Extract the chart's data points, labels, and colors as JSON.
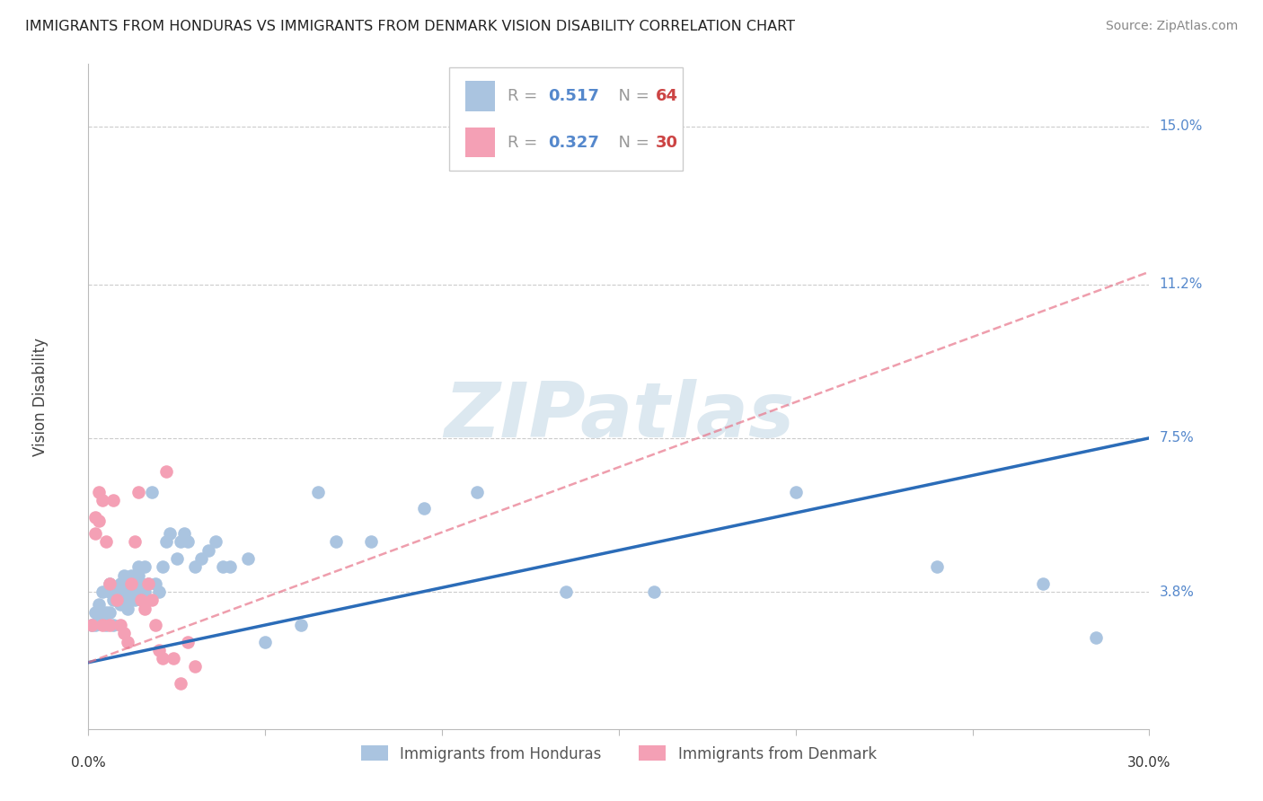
{
  "title": "IMMIGRANTS FROM HONDURAS VS IMMIGRANTS FROM DENMARK VISION DISABILITY CORRELATION CHART",
  "source": "Source: ZipAtlas.com",
  "ylabel": "Vision Disability",
  "xlim": [
    0.0,
    0.3
  ],
  "ylim": [
    0.005,
    0.165
  ],
  "ytick_labels": [
    "3.8%",
    "7.5%",
    "11.2%",
    "15.0%"
  ],
  "ytick_values": [
    0.038,
    0.075,
    0.112,
    0.15
  ],
  "background_color": "#ffffff",
  "grid_color": "#cccccc",
  "honduras_color": "#aac4e0",
  "honduras_line_color": "#2b6cb8",
  "denmark_color": "#f4a0b5",
  "denmark_line_color": "#e8758a",
  "watermark": "ZIPatlas",
  "watermark_color": "#dce8f0",
  "legend_box_color": "#cccccc",
  "R_honduras_val": "0.517",
  "N_honduras_val": "64",
  "R_denmark_val": "0.327",
  "N_denmark_val": "30",
  "R_color": "#5588cc",
  "N_color": "#cc4444",
  "honduras_x": [
    0.001,
    0.002,
    0.002,
    0.003,
    0.003,
    0.004,
    0.004,
    0.005,
    0.005,
    0.006,
    0.006,
    0.006,
    0.007,
    0.007,
    0.008,
    0.008,
    0.009,
    0.009,
    0.01,
    0.01,
    0.01,
    0.011,
    0.011,
    0.012,
    0.012,
    0.013,
    0.013,
    0.014,
    0.014,
    0.015,
    0.015,
    0.016,
    0.016,
    0.017,
    0.018,
    0.019,
    0.02,
    0.021,
    0.022,
    0.023,
    0.025,
    0.026,
    0.027,
    0.028,
    0.03,
    0.032,
    0.034,
    0.036,
    0.038,
    0.04,
    0.045,
    0.05,
    0.06,
    0.065,
    0.07,
    0.08,
    0.095,
    0.11,
    0.135,
    0.16,
    0.2,
    0.24,
    0.27,
    0.285
  ],
  "honduras_y": [
    0.03,
    0.033,
    0.03,
    0.032,
    0.035,
    0.031,
    0.038,
    0.033,
    0.03,
    0.033,
    0.038,
    0.04,
    0.03,
    0.036,
    0.038,
    0.036,
    0.04,
    0.035,
    0.042,
    0.038,
    0.036,
    0.034,
    0.04,
    0.038,
    0.042,
    0.04,
    0.036,
    0.044,
    0.042,
    0.038,
    0.04,
    0.044,
    0.038,
    0.04,
    0.062,
    0.04,
    0.038,
    0.044,
    0.05,
    0.052,
    0.046,
    0.05,
    0.052,
    0.05,
    0.044,
    0.046,
    0.048,
    0.05,
    0.044,
    0.044,
    0.046,
    0.026,
    0.03,
    0.062,
    0.05,
    0.05,
    0.058,
    0.062,
    0.038,
    0.038,
    0.062,
    0.044,
    0.04,
    0.027
  ],
  "denmark_x": [
    0.001,
    0.002,
    0.002,
    0.003,
    0.003,
    0.004,
    0.004,
    0.005,
    0.006,
    0.006,
    0.007,
    0.008,
    0.009,
    0.01,
    0.011,
    0.012,
    0.013,
    0.014,
    0.015,
    0.016,
    0.017,
    0.018,
    0.019,
    0.02,
    0.021,
    0.022,
    0.024,
    0.026,
    0.028,
    0.03
  ],
  "denmark_y": [
    0.03,
    0.056,
    0.052,
    0.062,
    0.055,
    0.03,
    0.06,
    0.05,
    0.03,
    0.04,
    0.06,
    0.036,
    0.03,
    0.028,
    0.026,
    0.04,
    0.05,
    0.062,
    0.036,
    0.034,
    0.04,
    0.036,
    0.03,
    0.024,
    0.022,
    0.067,
    0.022,
    0.016,
    0.026,
    0.02
  ],
  "honduras_reg": [
    0.021,
    0.075
  ],
  "denmark_reg": [
    0.021,
    0.115
  ]
}
